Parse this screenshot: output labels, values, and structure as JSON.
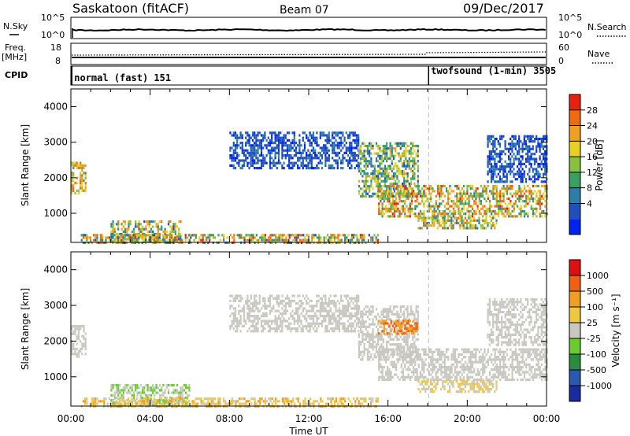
{
  "header": {
    "station": "Saskatoon (fitACF)",
    "beam": "Beam 07",
    "date": "09/Dec/2017"
  },
  "noise_panel": {
    "left_label": "N.Sky",
    "right_label": "N.Search",
    "left_ticks": [
      "10^5",
      "10^0"
    ],
    "right_ticks": [
      "10^5",
      "10^0"
    ]
  },
  "freq_panel": {
    "left_label": "Freq.",
    "left_unit": "[MHz]",
    "right_label": "Nave",
    "left_ticks": [
      "18",
      "8"
    ],
    "right_ticks": [
      "60",
      "0"
    ]
  },
  "cpid_panel": {
    "label": "CPID",
    "modes": [
      {
        "name": "normal (fast) 151",
        "start_hour": 0.05
      },
      {
        "name": "twofsound (1-min) 3505",
        "start_hour": 18.05
      }
    ]
  },
  "x_axis": {
    "label": "Time UT",
    "range_hours": [
      0,
      24
    ],
    "ticks": [
      "00:00",
      "04:00",
      "08:00",
      "12:00",
      "16:00",
      "20:00",
      "00:00"
    ]
  },
  "chart_data": [
    {
      "type": "heatmap",
      "name": "power",
      "ylabel": "Slant Range [km]",
      "ylim": [
        180,
        4500
      ],
      "yticks": [
        "1000",
        "2000",
        "3000",
        "4000"
      ],
      "ytick_values": [
        1000,
        2000,
        3000,
        4000
      ],
      "colorbar_label": "Power [dB]",
      "colorbar_ticks": [
        "28",
        "24",
        "20",
        "16",
        "12",
        "8",
        "4"
      ],
      "colors": [
        "#0022ee",
        "#1f4fbf",
        "#2a7ea8",
        "#3aa060",
        "#88c040",
        "#e8d020",
        "#f0a020",
        "#f06a10",
        "#e82010"
      ],
      "regions": [
        {
          "t0": 0.0,
          "t1": 0.7,
          "r0": 1550,
          "r1": 2450,
          "level": [
            3,
            7
          ]
        },
        {
          "t0": 2.0,
          "t1": 5.5,
          "r0": 180,
          "r1": 800,
          "level": [
            1,
            7
          ]
        },
        {
          "t0": 0.5,
          "t1": 15.5,
          "r0": 180,
          "r1": 420,
          "level": [
            1,
            8
          ]
        },
        {
          "t0": 8.0,
          "t1": 14.5,
          "r0": 2300,
          "r1": 3300,
          "level": [
            0,
            2
          ]
        },
        {
          "t0": 14.5,
          "t1": 17.5,
          "r0": 1500,
          "r1": 3000,
          "level": [
            1,
            6
          ]
        },
        {
          "t0": 15.5,
          "t1": 24.0,
          "r0": 900,
          "r1": 1800,
          "level": [
            2,
            8
          ]
        },
        {
          "t0": 17.5,
          "t1": 21.5,
          "r0": 550,
          "r1": 900,
          "level": [
            2,
            7
          ]
        },
        {
          "t0": 21.0,
          "t1": 24.0,
          "r0": 1900,
          "r1": 3200,
          "level": [
            0,
            2
          ]
        }
      ]
    },
    {
      "type": "heatmap",
      "name": "velocity",
      "ylabel": "Slant Range [km]",
      "ylim": [
        180,
        4500
      ],
      "yticks": [
        "1000",
        "2000",
        "3000",
        "4000"
      ],
      "ytick_values": [
        1000,
        2000,
        3000,
        4000
      ],
      "colorbar_label": "Velocity [m s⁻¹]",
      "colorbar_ticks": [
        "1000",
        "500",
        "100",
        "25",
        "-25",
        "-100",
        "-500",
        "-1000"
      ],
      "colors": [
        "#1a2aa0",
        "#2a5ab0",
        "#2a8a40",
        "#6acc30",
        "#c8c8c0",
        "#f0c840",
        "#f0a020",
        "#f06010",
        "#e01010"
      ],
      "regions": [
        {
          "t0": 0.0,
          "t1": 0.7,
          "r0": 1550,
          "r1": 2450,
          "level": [
            4,
            4
          ]
        },
        {
          "t0": 2.0,
          "t1": 6.0,
          "r0": 180,
          "r1": 800,
          "level": [
            3,
            4
          ]
        },
        {
          "t0": 0.5,
          "t1": 15.5,
          "r0": 180,
          "r1": 420,
          "level": [
            4,
            6
          ]
        },
        {
          "t0": 8.0,
          "t1": 14.5,
          "r0": 2300,
          "r1": 3300,
          "level": [
            4,
            4
          ]
        },
        {
          "t0": 14.5,
          "t1": 17.5,
          "r0": 1500,
          "r1": 3000,
          "level": [
            4,
            4
          ]
        },
        {
          "t0": 15.5,
          "t1": 17.5,
          "r0": 2200,
          "r1": 2600,
          "level": [
            6,
            7
          ]
        },
        {
          "t0": 15.5,
          "t1": 24.0,
          "r0": 900,
          "r1": 1800,
          "level": [
            4,
            4
          ]
        },
        {
          "t0": 17.5,
          "t1": 21.5,
          "r0": 550,
          "r1": 900,
          "level": [
            4,
            5
          ]
        },
        {
          "t0": 21.0,
          "t1": 24.0,
          "r0": 1900,
          "r1": 3200,
          "level": [
            4,
            4
          ]
        }
      ]
    }
  ]
}
